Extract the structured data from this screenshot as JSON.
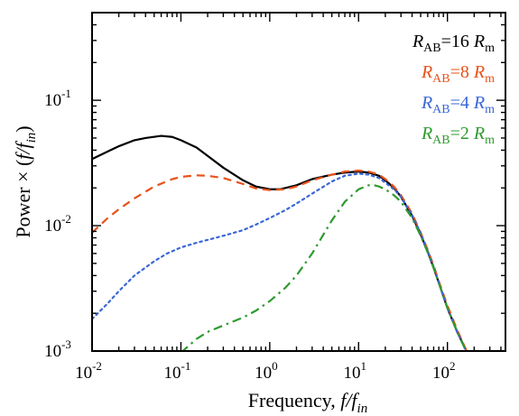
{
  "chart_data": {
    "type": "line",
    "title": "",
    "xlabel": "Frequency, f/f_in",
    "ylabel": "Power × (f/f_in)",
    "xscale": "log",
    "yscale": "log",
    "xlim": [
      0.01,
      450
    ],
    "ylim": [
      0.001,
      0.5
    ],
    "grid": false,
    "legend_position": "top-right",
    "x_ticks": [
      {
        "value": 0.01,
        "base": "10",
        "exp": "-2"
      },
      {
        "value": 0.1,
        "base": "10",
        "exp": "-1"
      },
      {
        "value": 1,
        "base": "10",
        "exp": "0"
      },
      {
        "value": 10,
        "base": "10",
        "exp": "1"
      },
      {
        "value": 100,
        "base": "10",
        "exp": "2"
      }
    ],
    "y_ticks": [
      {
        "value": 0.001,
        "base": "10",
        "exp": "-3"
      },
      {
        "value": 0.01,
        "base": "10",
        "exp": "-2"
      },
      {
        "value": 0.1,
        "base": "10",
        "exp": "-1"
      }
    ],
    "series": [
      {
        "name": "R_AB=16 R_m",
        "label_parts": {
          "R": "R",
          "sub1": "AB",
          "mid": "=16 ",
          "R2": "R",
          "sub2": "m"
        },
        "color": "#000000",
        "dash": "solid",
        "x": [
          0.01,
          0.015,
          0.02,
          0.03,
          0.04,
          0.06,
          0.08,
          0.1,
          0.15,
          0.2,
          0.3,
          0.5,
          0.7,
          1.0,
          1.3,
          2,
          3,
          5,
          7,
          10,
          13,
          17,
          20,
          25,
          30,
          40,
          50,
          60,
          70,
          80,
          100,
          130,
          170
        ],
        "y": [
          0.034,
          0.039,
          0.043,
          0.048,
          0.05,
          0.052,
          0.051,
          0.048,
          0.042,
          0.036,
          0.029,
          0.023,
          0.0205,
          0.0195,
          0.0195,
          0.021,
          0.0235,
          0.0255,
          0.0265,
          0.027,
          0.0265,
          0.025,
          0.023,
          0.02,
          0.017,
          0.012,
          0.0085,
          0.0062,
          0.0046,
          0.0035,
          0.0022,
          0.0014,
          0.00095
        ]
      },
      {
        "name": "R_AB=8 R_m",
        "label_parts": {
          "R": "R",
          "sub1": "AB",
          "mid": "=8 ",
          "R2": "R",
          "sub2": "m"
        },
        "color": "#e8521a",
        "dash": "dashed",
        "x": [
          0.01,
          0.015,
          0.02,
          0.03,
          0.05,
          0.08,
          0.1,
          0.15,
          0.2,
          0.3,
          0.5,
          0.7,
          1.0,
          1.5,
          2,
          3,
          5,
          7,
          10,
          13,
          17,
          20,
          25,
          30,
          40,
          50,
          60,
          70,
          80,
          100,
          130,
          170
        ],
        "y": [
          0.0088,
          0.0115,
          0.0135,
          0.0165,
          0.0205,
          0.0235,
          0.0245,
          0.0252,
          0.025,
          0.024,
          0.0215,
          0.0198,
          0.0192,
          0.0195,
          0.0205,
          0.023,
          0.0255,
          0.027,
          0.0275,
          0.027,
          0.0255,
          0.0235,
          0.0205,
          0.0175,
          0.0125,
          0.0088,
          0.0064,
          0.0048,
          0.0036,
          0.0023,
          0.00145,
          0.00095
        ]
      },
      {
        "name": "R_AB=4 R_m",
        "label_parts": {
          "R": "R",
          "sub1": "AB",
          "mid": "=4 ",
          "R2": "R",
          "sub2": "m"
        },
        "color": "#3a66d6",
        "dash": "dotted",
        "x": [
          0.01,
          0.015,
          0.02,
          0.03,
          0.05,
          0.07,
          0.1,
          0.15,
          0.2,
          0.3,
          0.5,
          0.7,
          1.0,
          1.5,
          2,
          3,
          5,
          7,
          10,
          13,
          17,
          20,
          25,
          30,
          40,
          50,
          60,
          70,
          80,
          100,
          130,
          170
        ],
        "y": [
          0.0018,
          0.0024,
          0.003,
          0.004,
          0.0052,
          0.006,
          0.0067,
          0.0073,
          0.0077,
          0.0083,
          0.0092,
          0.0102,
          0.0115,
          0.0133,
          0.015,
          0.018,
          0.0225,
          0.025,
          0.026,
          0.0255,
          0.024,
          0.022,
          0.0195,
          0.017,
          0.0122,
          0.0087,
          0.0063,
          0.0047,
          0.0035,
          0.0022,
          0.0014,
          0.00093
        ]
      },
      {
        "name": "R_AB=2 R_m",
        "label_parts": {
          "R": "R",
          "sub1": "AB",
          "mid": "=2 ",
          "R2": "R",
          "sub2": "m"
        },
        "color": "#2e9a2e",
        "dash": "dashdot",
        "x": [
          0.1,
          0.15,
          0.2,
          0.3,
          0.5,
          0.7,
          1.0,
          1.5,
          2,
          3,
          5,
          7,
          10,
          13,
          15,
          17,
          20,
          25,
          30,
          40,
          50,
          60,
          70,
          80,
          100,
          130,
          170
        ],
        "y": [
          0.00097,
          0.00125,
          0.00142,
          0.0016,
          0.00185,
          0.0021,
          0.0025,
          0.0032,
          0.004,
          0.006,
          0.011,
          0.0155,
          0.0195,
          0.021,
          0.021,
          0.0205,
          0.0195,
          0.0175,
          0.0155,
          0.0115,
          0.0083,
          0.0061,
          0.0046,
          0.0035,
          0.0022,
          0.0014,
          0.00093
        ]
      }
    ]
  }
}
